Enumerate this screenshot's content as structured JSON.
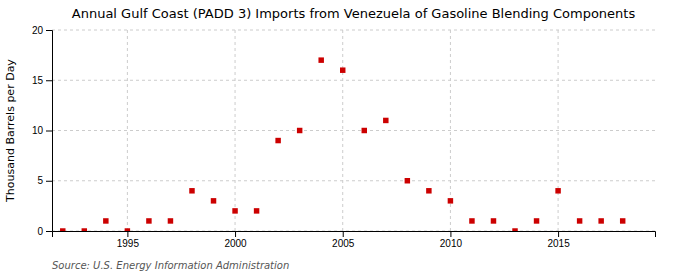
{
  "chart_data": {
    "type": "scatter",
    "title": "Annual Gulf Coast (PADD 3) Imports from Venezuela of Gasoline Blending Components",
    "ylabel": "Thousand Barrels per Day",
    "source": "Source: U.S. Energy Information Administration",
    "x": [
      1992,
      1993,
      1994,
      1995,
      1996,
      1997,
      1998,
      1999,
      2000,
      2001,
      2002,
      2003,
      2004,
      2005,
      2006,
      2007,
      2008,
      2009,
      2010,
      2011,
      2012,
      2013,
      2014,
      2015,
      2016,
      2017,
      2018
    ],
    "values": [
      0,
      0,
      1,
      0,
      1,
      1,
      4,
      3,
      2,
      2,
      9,
      10,
      17,
      16,
      10,
      11,
      5,
      4,
      3,
      1,
      1,
      0,
      1,
      4,
      1,
      1,
      1
    ],
    "color": "#cc0000",
    "marker": "square",
    "xlim": [
      1991.5,
      2019.5
    ],
    "xticks": [
      1995,
      2000,
      2005,
      2010,
      2015
    ],
    "ylim": [
      0,
      20
    ],
    "yticks": [
      0,
      5,
      10,
      15,
      20
    ],
    "grid": true
  }
}
